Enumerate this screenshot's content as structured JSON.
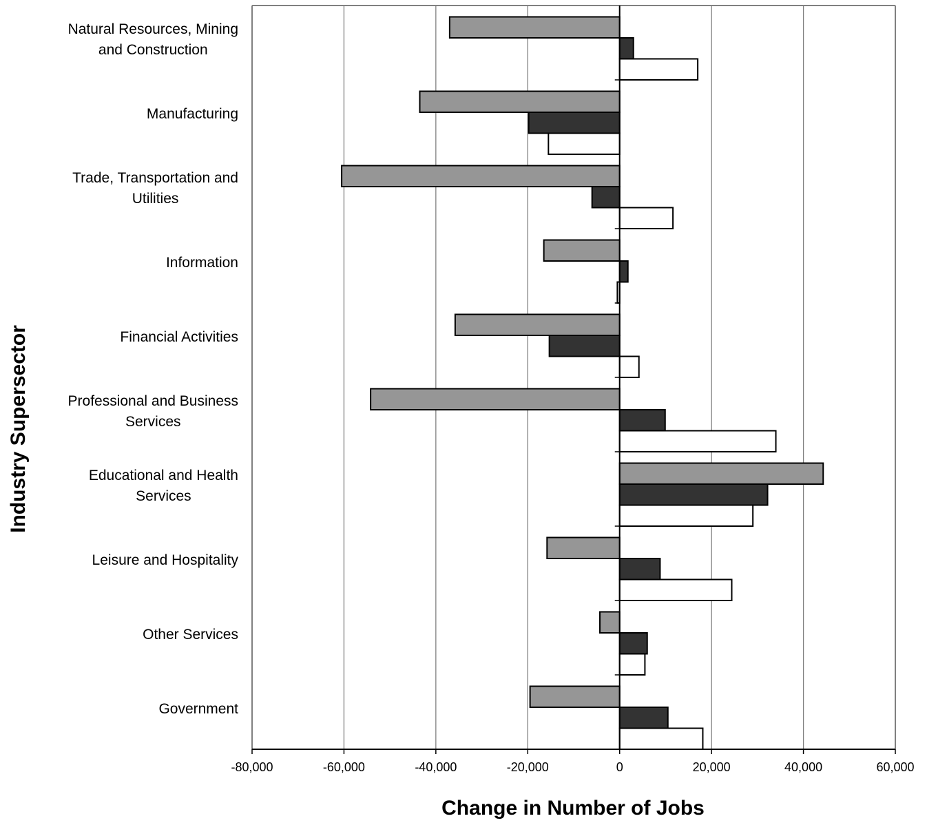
{
  "chart_data": {
    "type": "bar",
    "orientation": "horizontal",
    "title": "",
    "xlabel": "Change in Number of Jobs",
    "ylabel": "Industry Supersector",
    "xlim": [
      -80000,
      60000
    ],
    "x_ticks": [
      -80000,
      -60000,
      -40000,
      -20000,
      0,
      20000,
      40000,
      60000
    ],
    "x_tick_labels": [
      "-80,000",
      "-60,000",
      "-40,000",
      "-20,000",
      "0",
      "20,000",
      "40,000",
      "60,000"
    ],
    "grid": "vertical major gridlines on",
    "legend": "none",
    "categories": [
      [
        "Natural Resources, Mining",
        "and Construction"
      ],
      [
        "Manufacturing"
      ],
      [
        "Trade, Transportation and",
        "Utilities"
      ],
      [
        "Information"
      ],
      [
        "Financial Activities"
      ],
      [
        "Professional and Business",
        "Services"
      ],
      [
        "Educational and Health",
        "Services"
      ],
      [
        "Leisure and Hospitality"
      ],
      [
        "Other Services"
      ],
      [
        "Government"
      ]
    ],
    "series": [
      {
        "color": "#969696",
        "values": [
          -37000,
          -43500,
          -60500,
          -16500,
          -35800,
          -54200,
          44300,
          -15800,
          -4300,
          -19500
        ]
      },
      {
        "color": "#333333",
        "values": [
          3000,
          -19800,
          -6000,
          1800,
          -15300,
          9900,
          32200,
          8800,
          6000,
          10500
        ]
      },
      {
        "color": "#ffffff",
        "values": [
          17000,
          -15500,
          11600,
          -500,
          4200,
          34000,
          29000,
          24400,
          5500,
          18100
        ]
      }
    ]
  }
}
